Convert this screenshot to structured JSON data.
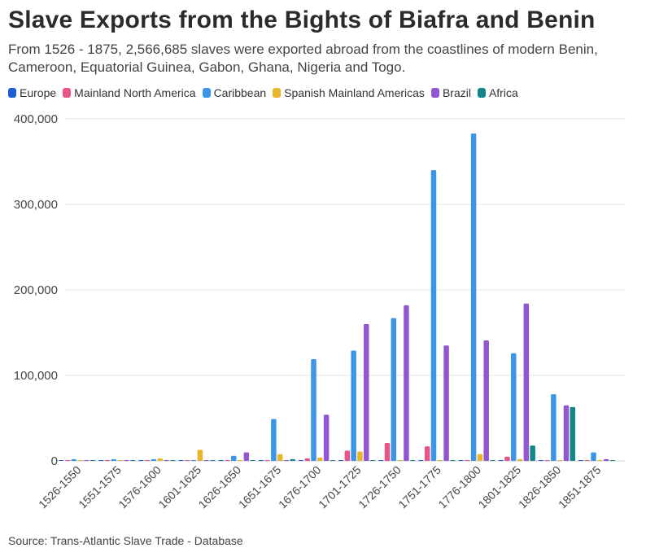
{
  "header": {
    "title": "Slave Exports from the Bights of Biafra and Benin",
    "subtitle": "From 1526 - 1875, 2,566,685 slaves were exported abroad from the coastlines of modern Benin, Cameroon, Equatorial Guinea, Gabon, Ghana, Nigeria and Togo."
  },
  "footer": {
    "source": "Source: Trans-Atlantic Slave Trade - Database"
  },
  "chart_data": {
    "type": "bar",
    "title": "Slave Exports from the Bights of Biafra and Benin",
    "xlabel": "",
    "ylabel": "",
    "ylim": [
      0,
      400000
    ],
    "yticks": [
      0,
      100000,
      200000,
      300000,
      400000
    ],
    "ytick_labels": [
      "0",
      "100,000",
      "200,000",
      "300,000",
      "400,000"
    ],
    "grid": true,
    "legend_position": "top-left",
    "categories": [
      "1526-1550",
      "1551-1575",
      "1576-1600",
      "1601-1625",
      "1626-1650",
      "1651-1675",
      "1676-1700",
      "1701-1725",
      "1726-1750",
      "1751-1775",
      "1776-1800",
      "1801-1825",
      "1826-1850",
      "1851-1875"
    ],
    "series": [
      {
        "name": "Europe",
        "color": "#1f5fd1",
        "values": [
          0,
          0,
          0,
          0,
          0,
          0,
          0,
          0,
          0,
          0,
          0,
          0,
          0,
          0
        ]
      },
      {
        "name": "Mainland North America",
        "color": "#e8538a",
        "values": [
          0,
          0,
          0,
          0,
          0,
          0,
          3000,
          12000,
          21000,
          17000,
          0,
          5000,
          0,
          0
        ]
      },
      {
        "name": "Caribbean",
        "color": "#3b95e8",
        "values": [
          2000,
          2000,
          2000,
          0,
          6000,
          49000,
          119000,
          129000,
          167000,
          340000,
          383000,
          126000,
          78000,
          10000
        ]
      },
      {
        "name": "Spanish Mainland Americas",
        "color": "#e9b52a",
        "values": [
          1000,
          1000,
          3000,
          13000,
          1000,
          8000,
          4000,
          11000,
          0,
          0,
          8000,
          2000,
          0,
          0
        ]
      },
      {
        "name": "Brazil",
        "color": "#9356d2",
        "values": [
          0,
          0,
          0,
          0,
          10000,
          0,
          54000,
          160000,
          182000,
          135000,
          141000,
          184000,
          65000,
          2000
        ]
      },
      {
        "name": "Africa",
        "color": "#12868a",
        "values": [
          0,
          0,
          0,
          0,
          0,
          2000,
          0,
          0,
          0,
          1000,
          0,
          18000,
          63000,
          1000
        ]
      }
    ]
  }
}
